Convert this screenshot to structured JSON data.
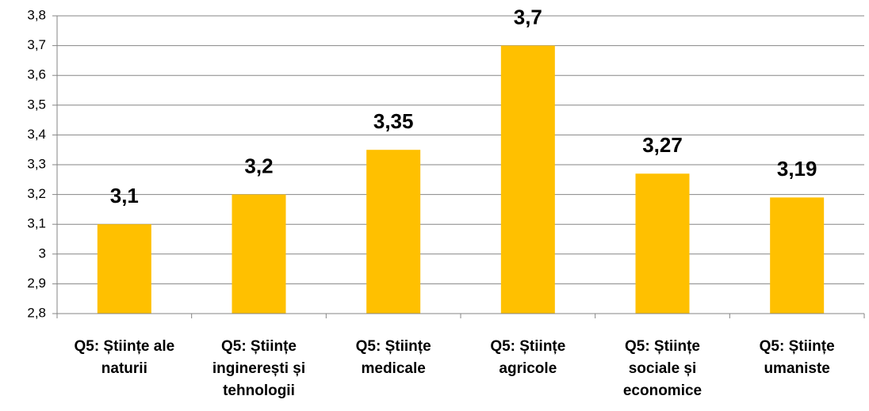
{
  "chart_data": {
    "type": "bar",
    "categories": [
      "Q5: Științe ale naturii",
      "Q5: Științe inginerești și tehnologii",
      "Q5: Științe medicale",
      "Q5: Științe agricole",
      "Q5: Științe sociale și economice",
      "Q5: Științe umaniste"
    ],
    "values": [
      3.1,
      3.2,
      3.35,
      3.7,
      3.27,
      3.19
    ],
    "value_labels": [
      "3,1",
      "3,2",
      "3,35",
      "3,7",
      "3,27",
      "3,19"
    ],
    "color": "#ffc000",
    "ylim": [
      2.8,
      3.8
    ],
    "yticks": [
      {
        "value": 2.8,
        "label": "2,8"
      },
      {
        "value": 2.9,
        "label": "2,9"
      },
      3,
      {
        "value": 3.1,
        "label": "3,1"
      },
      {
        "value": 3.2,
        "label": "3,2"
      },
      {
        "value": 3.3,
        "label": "3,3"
      },
      {
        "value": 3.4,
        "label": "3,4"
      },
      {
        "value": 3.5,
        "label": "3,5"
      },
      {
        "value": 3.6,
        "label": "3,6"
      },
      {
        "value": 3.7,
        "label": "3,7"
      },
      {
        "value": 3.8,
        "label": "3,8"
      }
    ],
    "grid": true
  }
}
